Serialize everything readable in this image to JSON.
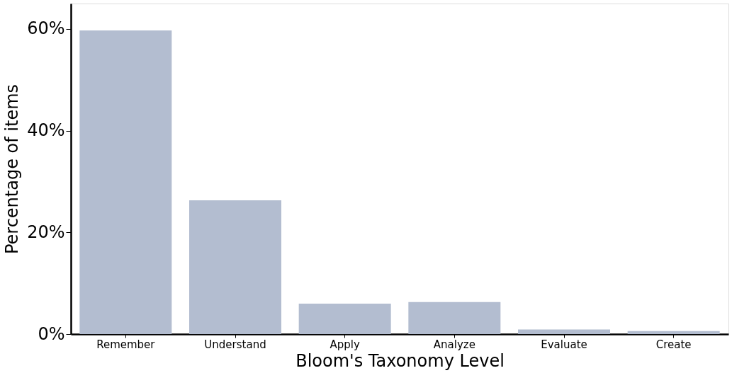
{
  "chart_data": {
    "type": "bar",
    "xlabel": "Bloom's Taxonomy Level",
    "ylabel": "Percentage of items",
    "categories": [
      "Remember",
      "Understand",
      "Apply",
      "Analyze",
      "Evaluate",
      "Create"
    ],
    "values": [
      59.7,
      26.3,
      6.0,
      6.3,
      0.9,
      0.6
    ],
    "color": "#b3bdd0",
    "ylim": [
      0,
      65
    ],
    "yticks": [
      {
        "value": 0,
        "label": "0%"
      },
      {
        "value": 20,
        "label": "20%"
      },
      {
        "value": 40,
        "label": "40%"
      },
      {
        "value": 60,
        "label": "60%"
      }
    ],
    "grid": false
  }
}
